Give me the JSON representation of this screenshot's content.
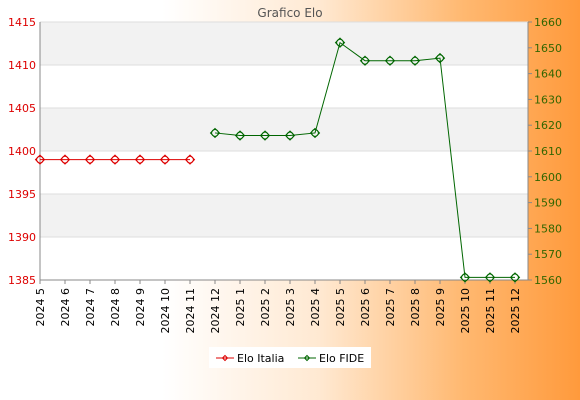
{
  "chart_data": {
    "type": "line",
    "title": "Grafico Elo",
    "categories": [
      "2024 5",
      "2024 6",
      "2024 7",
      "2024 8",
      "2024 9",
      "2024 10",
      "2024 11",
      "2024 12",
      "2025 1",
      "2025 2",
      "2025 3",
      "2025 4",
      "2025 5",
      "2025 6",
      "2025 7",
      "2025 8",
      "2025 9",
      "2025 10",
      "2025 11",
      "2025 12"
    ],
    "y_left": {
      "min": 1385,
      "max": 1415,
      "ticks": [
        1385,
        1390,
        1395,
        1400,
        1405,
        1410,
        1415
      ],
      "color": "#dd0000"
    },
    "y_right": {
      "min": 1560,
      "max": 1660,
      "ticks": [
        1560,
        1570,
        1580,
        1590,
        1600,
        1610,
        1620,
        1630,
        1640,
        1650,
        1660
      ],
      "color": "#336600"
    },
    "series": [
      {
        "name": "Elo Italia",
        "axis": "left",
        "color": "#dd0000",
        "values": [
          1399,
          1399,
          1399,
          1399,
          1399,
          1399,
          1399,
          null,
          null,
          null,
          null,
          null,
          null,
          null,
          null,
          null,
          null,
          null,
          null,
          null
        ]
      },
      {
        "name": "Elo FIDE",
        "axis": "right",
        "color": "#006600",
        "values": [
          null,
          null,
          null,
          null,
          null,
          null,
          null,
          1617,
          1616,
          1616,
          1616,
          1617,
          1652,
          1645,
          1645,
          1645,
          1646,
          1561,
          1561,
          1561
        ]
      }
    ],
    "legend_position": "bottom-center",
    "grid": true
  }
}
